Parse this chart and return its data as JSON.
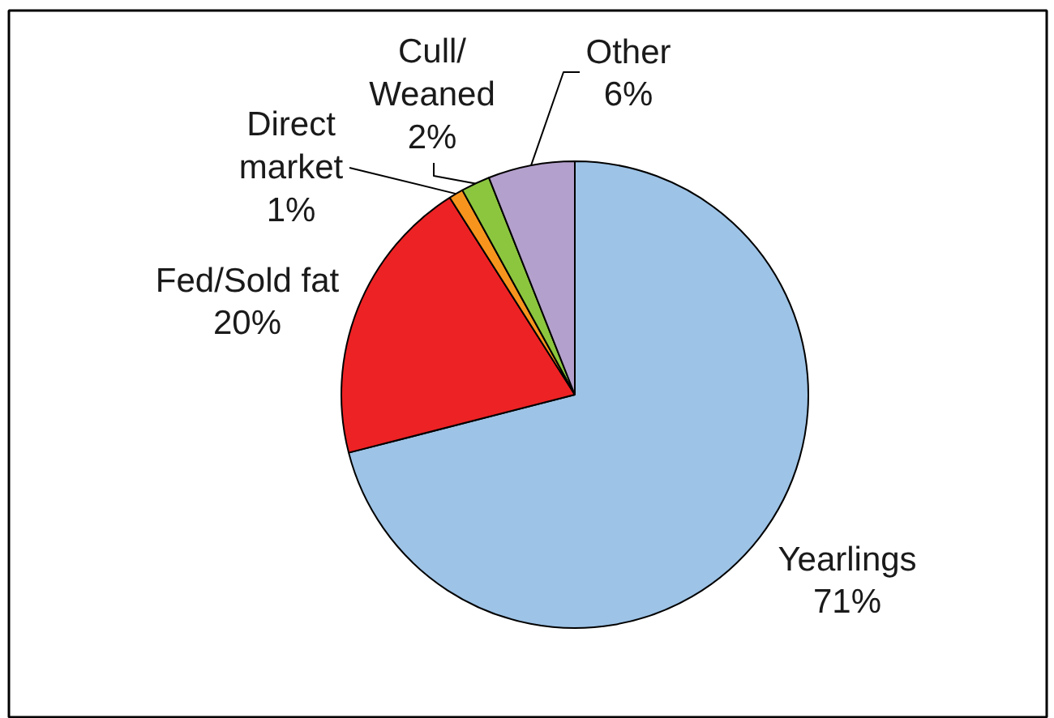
{
  "chart_data": {
    "type": "pie",
    "categories": [
      "Yearlings",
      "Fed/Sold fat",
      "Direct market",
      "Cull/Weaned",
      "Other"
    ],
    "values": [
      71,
      20,
      1,
      2,
      6
    ],
    "colors": [
      "#9dc3e6",
      "#ed2224",
      "#f7941e",
      "#8cc63e",
      "#b4a0cc"
    ],
    "value_labels": [
      "71%",
      "20%",
      "1%",
      "2%",
      "6%"
    ]
  }
}
